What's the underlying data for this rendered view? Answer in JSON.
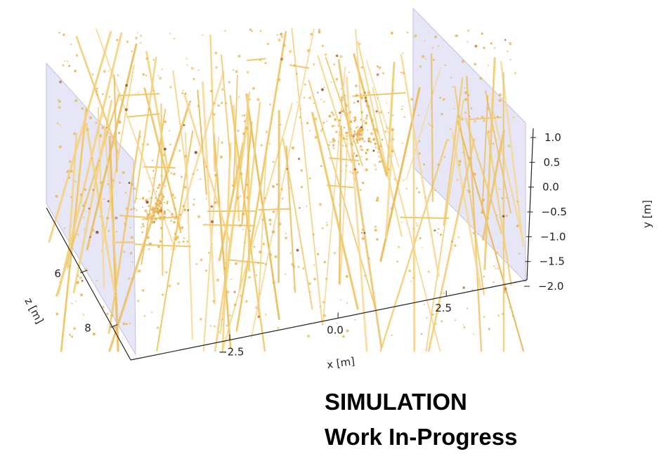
{
  "chart_data": {
    "type": "scatter",
    "projection": "3d",
    "title": "",
    "xlabel": "x [m]",
    "ylabel": "y [m]",
    "zlabel": "z [m]",
    "x_ticks": [
      "−2.5",
      "0.0",
      "2.5"
    ],
    "x_tick_values": [
      -2.5,
      0.0,
      2.5
    ],
    "y_ticks": [
      "1.0",
      "0.5",
      "0.0",
      "−0.5",
      "−1.0",
      "−1.5",
      "−2.0"
    ],
    "y_tick_values": [
      1.0,
      0.5,
      0.0,
      -0.5,
      -1.0,
      -1.5,
      -2.0
    ],
    "z_ticks": [
      "6",
      "8"
    ],
    "z_tick_values": [
      6,
      8
    ],
    "ylim": [
      -2.0,
      1.1
    ],
    "grid": false,
    "legend": "none",
    "series": [
      {
        "kind": "tracks",
        "color": "#f0c86a",
        "count_estimate": 90
      },
      {
        "kind": "points",
        "color": "#e8b85a",
        "count_estimate": 900
      }
    ],
    "hotspots_x": [
      -4.2,
      0.4
    ],
    "planes": {
      "color": "#d8d8f0",
      "count": 2
    }
  },
  "overlay": {
    "line1": "SIMULATION",
    "line2": "Work In-Progress"
  }
}
